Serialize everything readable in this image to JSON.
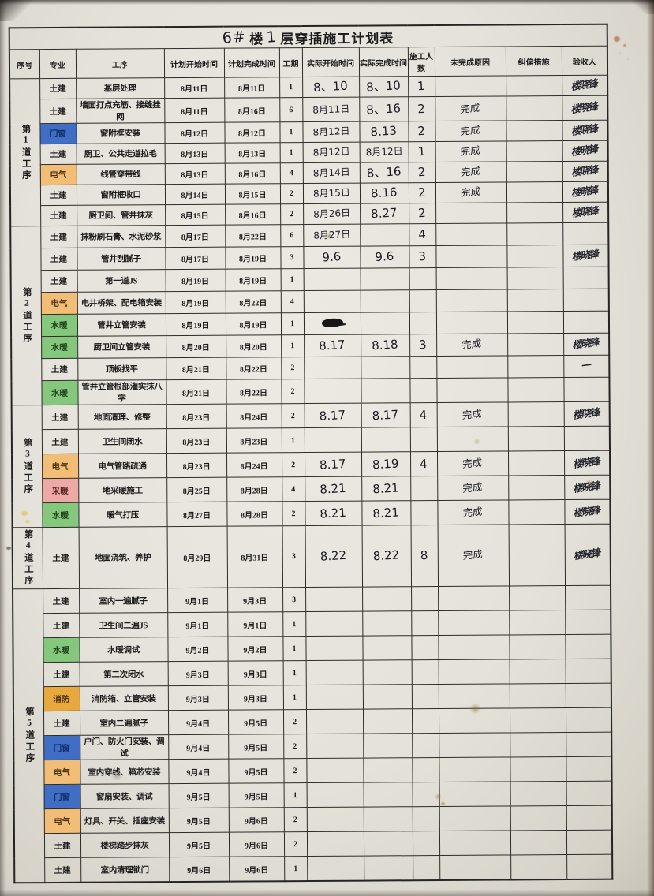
{
  "title": {
    "building_no_hand": "6#",
    "building_label": "楼",
    "floor_no_hand": "1",
    "suffix": "层穿插施工计划表"
  },
  "columns": [
    "序号",
    "专业",
    "工序",
    "计划开始时间",
    "计划完成时间",
    "工期",
    "实际开始时间",
    "实际完成时间",
    "施工人数",
    "未完成原因",
    "纠偏措施",
    "验收人"
  ],
  "specialty_colors": {
    "土建": {
      "bg": "",
      "fg": "#1c1c1c"
    },
    "门窗": {
      "bg": "#3f6ec4",
      "fg": "#122c66"
    },
    "电气": {
      "bg": "#f2bd76",
      "fg": "#4a3210"
    },
    "水暖": {
      "bg": "#85c77c",
      "fg": "#1f4418"
    },
    "采暖": {
      "bg": "#edaaa4",
      "fg": "#5a2420"
    },
    "消防": {
      "bg": "#e7a93e",
      "fg": "#4a3210"
    }
  },
  "sections": [
    {
      "label": "第1道工序",
      "rows": [
        {
          "specialty": "土建",
          "process": "基层处理",
          "plan_start": "8月11日",
          "plan_end": "8月11日",
          "duration": "1",
          "actual_start": "8、10",
          "actual_end": "8、10",
          "workers": "1",
          "reason": "",
          "measures": "",
          "acceptor": "楼晓锋"
        },
        {
          "specialty": "土建",
          "process": "墙面打点充筋、接缝挂网",
          "plan_start": "8月11日",
          "plan_end": "8月16日",
          "duration": "6",
          "actual_start": "8月11日",
          "actual_end": "8、16",
          "workers": "2",
          "reason": "完成",
          "measures": "",
          "acceptor": "楼晓锋"
        },
        {
          "specialty": "门窗",
          "process": "窗附框安装",
          "plan_start": "8月12日",
          "plan_end": "8月12日",
          "duration": "1",
          "actual_start": "8月12日",
          "actual_end": "8.13",
          "workers": "2",
          "reason": "完成",
          "measures": "",
          "acceptor": "楼晓锋"
        },
        {
          "specialty": "土建",
          "process": "厨卫、公共走道拉毛",
          "plan_start": "8月13日",
          "plan_end": "8月13日",
          "duration": "1",
          "actual_start": "8月12日",
          "actual_end": "8月12日",
          "workers": "1",
          "reason": "完成",
          "measures": "",
          "acceptor": "楼晓锋"
        },
        {
          "specialty": "电气",
          "process": "线管穿带线",
          "plan_start": "8月13日",
          "plan_end": "8月16日",
          "duration": "4",
          "actual_start": "8月14日",
          "actual_end": "8、16",
          "workers": "2",
          "reason": "完成",
          "measures": "",
          "acceptor": "楼晓锋"
        },
        {
          "specialty": "土建",
          "process": "窗附框收口",
          "plan_start": "8月14日",
          "plan_end": "8月15日",
          "duration": "2",
          "actual_start": "8月15日",
          "actual_end": "8.16",
          "workers": "2",
          "reason": "完成",
          "measures": "",
          "acceptor": "楼晓锋"
        },
        {
          "specialty": "土建",
          "process": "厨卫间、管井抹灰",
          "plan_start": "8月15日",
          "plan_end": "8月16日",
          "duration": "2",
          "actual_start": "8月26日",
          "actual_end": "8.27",
          "workers": "2",
          "reason": "",
          "measures": "",
          "acceptor": "楼晓锋"
        }
      ]
    },
    {
      "label": "第2道工序",
      "rows": [
        {
          "specialty": "土建",
          "process": "抹粉刷石膏、水泥砂浆",
          "plan_start": "8月17日",
          "plan_end": "8月22日",
          "duration": "6",
          "actual_start": "8月27日",
          "actual_end": "",
          "workers": "4",
          "reason": "",
          "measures": "",
          "acceptor": ""
        },
        {
          "specialty": "土建",
          "process": "管井刮腻子",
          "plan_start": "8月17日",
          "plan_end": "8月19日",
          "duration": "3",
          "actual_start": "9.6",
          "actual_end": "9.6",
          "workers": "3",
          "reason": "",
          "measures": "",
          "acceptor": "楼晓锋"
        },
        {
          "specialty": "土建",
          "process": "第一道JS",
          "plan_start": "8月19日",
          "plan_end": "8月19日",
          "duration": "1",
          "actual_start": "",
          "actual_end": "",
          "workers": "",
          "reason": "",
          "measures": "",
          "acceptor": ""
        },
        {
          "specialty": "电气",
          "process": "电井桥架、配电箱安装",
          "plan_start": "8月19日",
          "plan_end": "8月22日",
          "duration": "4",
          "actual_start": "",
          "actual_end": "",
          "workers": "",
          "reason": "",
          "measures": "",
          "acceptor": ""
        },
        {
          "specialty": "水暖",
          "process": "管井立管安装",
          "plan_start": "8月19日",
          "plan_end": "8月19日",
          "duration": "1",
          "actual_start": "",
          "actual_start_scribble": true,
          "actual_end": "",
          "workers": "",
          "reason": "",
          "measures": "",
          "acceptor": ""
        },
        {
          "specialty": "水暖",
          "process": "厨卫间立管安装",
          "plan_start": "8月20日",
          "plan_end": "8月20日",
          "duration": "1",
          "actual_start": "8.17",
          "actual_end": "8.18",
          "workers": "3",
          "reason": "完成",
          "measures": "",
          "acceptor": "楼晓锋"
        },
        {
          "specialty": "土建",
          "process": "顶板找平",
          "plan_start": "8月21日",
          "plan_end": "8月22日",
          "duration": "2",
          "actual_start": "",
          "actual_end": "",
          "workers": "",
          "reason": "",
          "measures": "",
          "acceptor": "一"
        },
        {
          "specialty": "水暖",
          "process": "管井立管根部灌实抹八字",
          "plan_start": "8月21日",
          "plan_end": "8月22日",
          "duration": "2",
          "actual_start": "",
          "actual_end": "",
          "workers": "",
          "reason": "",
          "measures": "",
          "acceptor": ""
        }
      ]
    },
    {
      "label": "第3道工序",
      "rows": [
        {
          "specialty": "土建",
          "process": "地面清理、修整",
          "plan_start": "8月23日",
          "plan_end": "8月24日",
          "duration": "2",
          "actual_start": "8.17",
          "actual_end": "8.17",
          "workers": "4",
          "reason": "完成",
          "measures": "",
          "acceptor": "楼晓锋"
        },
        {
          "specialty": "土建",
          "process": "卫生间闭水",
          "plan_start": "8月23日",
          "plan_end": "8月23日",
          "duration": "1",
          "actual_start": "",
          "actual_end": "",
          "workers": "",
          "reason": "",
          "measures": "",
          "acceptor": ""
        },
        {
          "specialty": "电气",
          "process": "电气管路疏通",
          "plan_start": "8月23日",
          "plan_end": "8月24日",
          "duration": "2",
          "actual_start": "8.17",
          "actual_end": "8.19",
          "workers": "4",
          "reason": "完成",
          "measures": "",
          "acceptor": "楼晓锋"
        },
        {
          "specialty": "采暖",
          "process": "地采暖施工",
          "plan_start": "8月25日",
          "plan_end": "8月28日",
          "duration": "4",
          "actual_start": "8.21",
          "actual_end": "8.21",
          "workers": "",
          "reason": "完成",
          "measures": "",
          "acceptor": "楼晓锋"
        },
        {
          "specialty": "水暖",
          "process": "暖气打压",
          "plan_start": "8月27日",
          "plan_end": "8月28日",
          "duration": "2",
          "actual_start": "8.21",
          "actual_end": "8.21",
          "workers": "",
          "reason": "完成",
          "measures": "",
          "acceptor": "楼晓锋"
        }
      ]
    },
    {
      "label": "第4道工序",
      "rows": [
        {
          "specialty": "土建",
          "process": "地面浇筑、养护",
          "plan_start": "8月29日",
          "plan_end": "8月31日",
          "duration": "3",
          "actual_start": "8.22",
          "actual_end": "8.22",
          "workers": "8",
          "reason": "完成",
          "measures": "",
          "acceptor": "楼晓锋"
        }
      ]
    },
    {
      "label": "第5道工序",
      "rows": [
        {
          "specialty": "土建",
          "process": "室内一遍腻子",
          "plan_start": "9月1日",
          "plan_end": "9月3日",
          "duration": "3",
          "actual_start": "",
          "actual_end": "",
          "workers": "",
          "reason": "",
          "measures": "",
          "acceptor": ""
        },
        {
          "specialty": "土建",
          "process": "卫生间二遍JS",
          "plan_start": "9月1日",
          "plan_end": "9月1日",
          "duration": "1",
          "actual_start": "",
          "actual_end": "",
          "workers": "",
          "reason": "",
          "measures": "",
          "acceptor": ""
        },
        {
          "specialty": "水暖",
          "process": "水暖调试",
          "plan_start": "9月2日",
          "plan_end": "9月2日",
          "duration": "1",
          "actual_start": "",
          "actual_end": "",
          "workers": "",
          "reason": "",
          "measures": "",
          "acceptor": ""
        },
        {
          "specialty": "土建",
          "process": "第二次闭水",
          "plan_start": "9月3日",
          "plan_end": "9月3日",
          "duration": "1",
          "actual_start": "",
          "actual_end": "",
          "workers": "",
          "reason": "",
          "measures": "",
          "acceptor": ""
        },
        {
          "specialty": "消防",
          "process": "消防箱、立管安装",
          "plan_start": "9月3日",
          "plan_end": "9月3日",
          "duration": "1",
          "actual_start": "",
          "actual_end": "",
          "workers": "",
          "reason": "",
          "measures": "",
          "acceptor": ""
        },
        {
          "specialty": "土建",
          "process": "室内二遍腻子",
          "plan_start": "9月4日",
          "plan_end": "9月5日",
          "duration": "2",
          "actual_start": "",
          "actual_end": "",
          "workers": "",
          "reason": "",
          "measures": "",
          "acceptor": ""
        },
        {
          "specialty": "门窗",
          "process": "户门、防火门安装、调试",
          "plan_start": "9月4日",
          "plan_end": "9月5日",
          "duration": "2",
          "actual_start": "",
          "actual_end": "",
          "workers": "",
          "reason": "",
          "measures": "",
          "acceptor": ""
        },
        {
          "specialty": "电气",
          "process": "室内穿线、箱芯安装",
          "plan_start": "9月4日",
          "plan_end": "9月5日",
          "duration": "2",
          "actual_start": "",
          "actual_end": "",
          "workers": "",
          "reason": "",
          "measures": "",
          "acceptor": ""
        },
        {
          "specialty": "门窗",
          "process": "窗扇安装、调试",
          "plan_start": "9月5日",
          "plan_end": "9月5日",
          "duration": "1",
          "actual_start": "",
          "actual_end": "",
          "workers": "",
          "reason": "",
          "measures": "",
          "acceptor": ""
        },
        {
          "specialty": "电气",
          "process": "灯具、开关、插座安装",
          "plan_start": "9月5日",
          "plan_end": "9月6日",
          "duration": "2",
          "actual_start": "",
          "actual_end": "",
          "workers": "",
          "reason": "",
          "measures": "",
          "acceptor": ""
        },
        {
          "specialty": "土建",
          "process": "楼梯踏步抹灰",
          "plan_start": "9月5日",
          "plan_end": "9月6日",
          "duration": "2",
          "actual_start": "",
          "actual_end": "",
          "workers": "",
          "reason": "",
          "measures": "",
          "acceptor": ""
        },
        {
          "specialty": "土建",
          "process": "室内清理锁门",
          "plan_start": "9月6日",
          "plan_end": "9月6日",
          "duration": "1",
          "actual_start": "",
          "actual_end": "",
          "workers": "",
          "reason": "",
          "measures": "",
          "acceptor": ""
        }
      ]
    }
  ]
}
